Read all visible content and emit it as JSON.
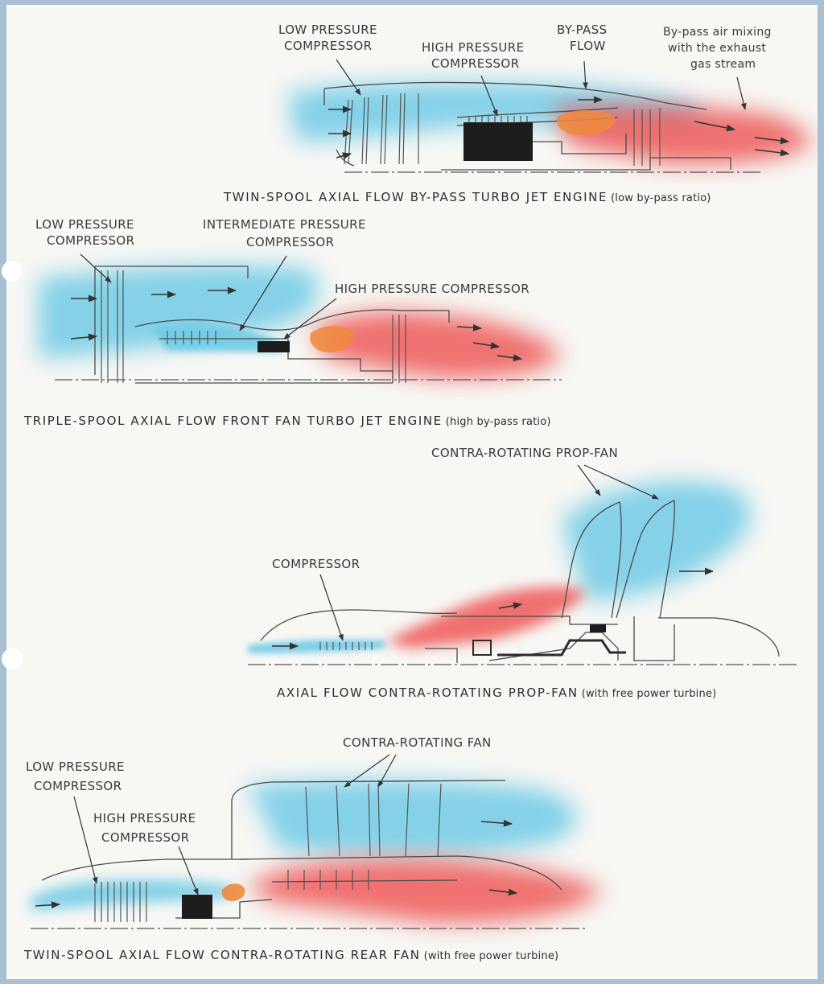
{
  "diagram_1": {
    "labels": {
      "lp_line1": "LOW PRESSURE",
      "lp_line2": "COMPRESSOR",
      "hp_line1": "HIGH PRESSURE",
      "hp_line2": "COMPRESSOR",
      "bypass_line1": "BY-PASS",
      "bypass_line2": "FLOW",
      "mix_line1": "By-pass air mixing",
      "mix_line2": "with the exhaust",
      "mix_line3": "gas stream"
    },
    "caption": "TWIN-SPOOL AXIAL FLOW BY-PASS TURBO JET ENGINE",
    "caption_note": "(low by-pass ratio)"
  },
  "diagram_2": {
    "labels": {
      "lp_line1": "LOW PRESSURE",
      "lp_line2": "COMPRESSOR",
      "ip_line1": "INTERMEDIATE PRESSURE",
      "ip_line2": "COMPRESSOR",
      "hp": "HIGH PRESSURE COMPRESSOR"
    },
    "caption": "TRIPLE-SPOOL AXIAL FLOW FRONT FAN TURBO JET ENGINE",
    "caption_note": "(high by-pass ratio)"
  },
  "diagram_3": {
    "labels": {
      "propfan": "CONTRA-ROTATING PROP-FAN",
      "compressor": "COMPRESSOR"
    },
    "caption": "AXIAL FLOW CONTRA-ROTATING PROP-FAN",
    "caption_note": "(with free power turbine)"
  },
  "diagram_4": {
    "labels": {
      "fan": "CONTRA-ROTATING FAN",
      "lp_line1": "LOW PRESSURE",
      "lp_line2": "COMPRESSOR",
      "hp_line1": "HIGH PRESSURE",
      "hp_line2": "COMPRESSOR"
    },
    "caption": "TWIN-SPOOL AXIAL FLOW CONTRA-ROTATING REAR FAN",
    "caption_note": "(with free power turbine)"
  },
  "colors": {
    "cold_air": "#6fcbe6",
    "hot_gas": "#ee5a58",
    "ink": "#3a3a3a",
    "page": "#f7f7f4",
    "frame": "#a9c0d2"
  }
}
